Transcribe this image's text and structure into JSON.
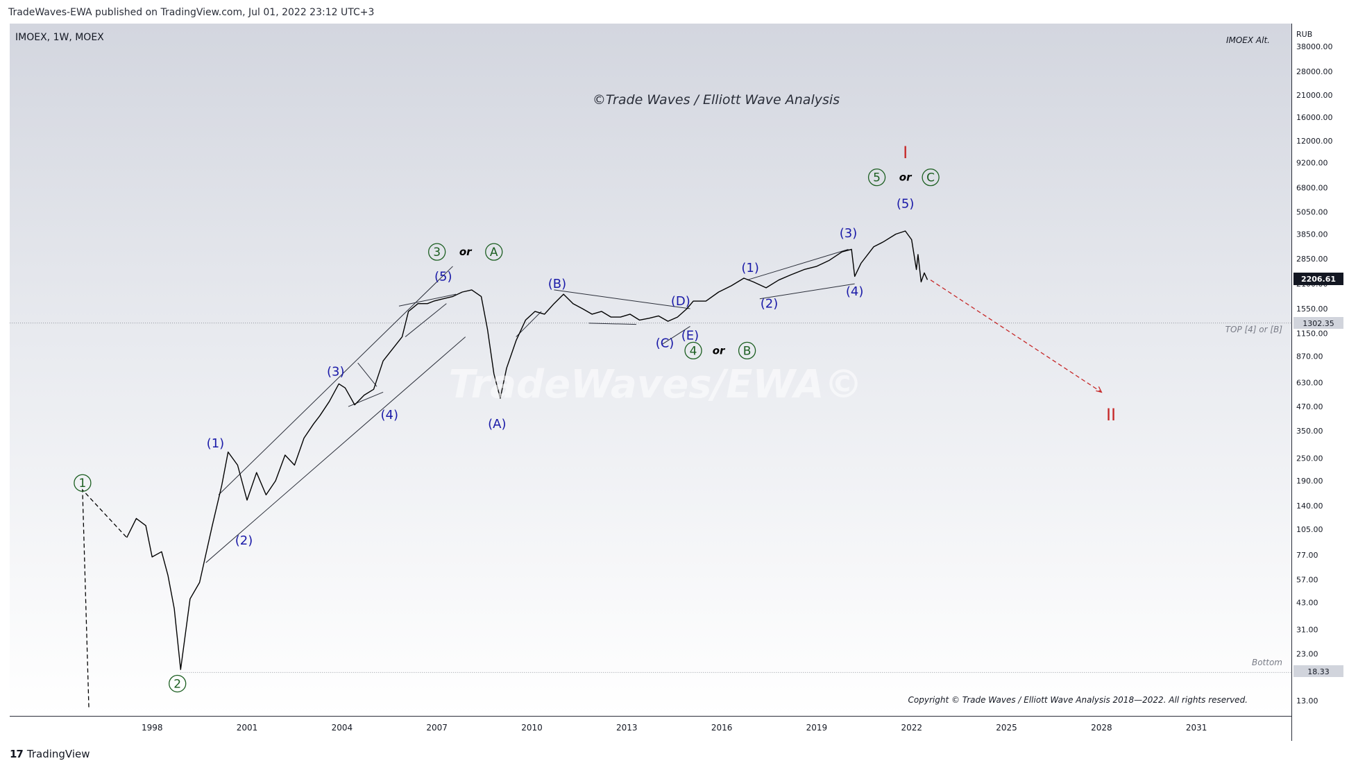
{
  "header": {
    "publisher_line": "TradeWaves-EWA published on TradingView.com, Jul 01, 2022 23:12 UTC+3"
  },
  "footer": {
    "brand": "TradingView"
  },
  "chart_data": {
    "type": "line",
    "symbol": "IMOEX, 1W, MOEX",
    "alt_label": "IMOEX Alt.",
    "currency": "RUB",
    "watermark": "©Trade Waves / Elliott Wave Analysis",
    "bg_watermark": "TradeWaves/EWA©",
    "copyright": "Copyright © Trade Waves / Elliott Wave Analysis 2018—2022. All rights reserved.",
    "scale": "log",
    "ylim": [
      12,
      40000
    ],
    "xlim": [
      1993.5,
      2034.0
    ],
    "y_ticks": [
      38000,
      28000,
      21000,
      16000,
      12000,
      9200,
      6800,
      5050,
      3850,
      2850,
      2100,
      1550,
      1150,
      870,
      630,
      470,
      350,
      250,
      190,
      140,
      105,
      77,
      57,
      43,
      31,
      23,
      13
    ],
    "y_tick_labels": [
      "38000.00",
      "28000.00",
      "21000.00",
      "16000.00",
      "12000.00",
      "9200.00",
      "6800.00",
      "5050.00",
      "3850.00",
      "2850.00",
      "2100.00",
      "1550.00",
      "1150.00",
      "870.00",
      "630.00",
      "470.00",
      "350.00",
      "250.00",
      "190.00",
      "140.00",
      "105.00",
      "77.00",
      "57.00",
      "43.00",
      "31.00",
      "23.00",
      "13.00"
    ],
    "x_ticks": [
      1998,
      2001,
      2004,
      2007,
      2010,
      2013,
      2016,
      2019,
      2022,
      2025,
      2028,
      2031
    ],
    "x_tick_labels": [
      "1998",
      "2001",
      "2004",
      "2007",
      "2010",
      "2013",
      "2016",
      "2019",
      "2022",
      "2025",
      "2028",
      "2031"
    ],
    "price_series": {
      "name": "IMOEX",
      "x": [
        1997.2,
        1997.5,
        1997.8,
        1998.0,
        1998.3,
        1998.5,
        1998.7,
        1998.9,
        1999.2,
        1999.5,
        1999.9,
        2000.2,
        2000.4,
        2000.7,
        2001.0,
        2001.3,
        2001.6,
        2001.9,
        2002.2,
        2002.5,
        2002.8,
        2003.1,
        2003.3,
        2003.6,
        2003.9,
        2004.1,
        2004.4,
        2004.7,
        2005.0,
        2005.3,
        2005.6,
        2005.9,
        2006.1,
        2006.4,
        2006.7,
        2006.9,
        2007.2,
        2007.5,
        2007.8,
        2008.1,
        2008.4,
        2008.6,
        2008.8,
        2009.0,
        2009.2,
        2009.5,
        2009.8,
        2010.1,
        2010.4,
        2010.7,
        2011.0,
        2011.3,
        2011.6,
        2011.9,
        2012.2,
        2012.5,
        2012.8,
        2013.1,
        2013.4,
        2013.7,
        2014.0,
        2014.3,
        2014.6,
        2014.9,
        2015.1,
        2015.5,
        2015.9,
        2016.3,
        2016.7,
        2017.0,
        2017.4,
        2017.8,
        2018.2,
        2018.6,
        2019.0,
        2019.4,
        2019.8,
        2020.1,
        2020.2,
        2020.4,
        2020.8,
        2021.1,
        2021.5,
        2021.8,
        2022.0,
        2022.15,
        2022.2,
        2022.3,
        2022.4,
        2022.5
      ],
      "y": [
        95,
        120,
        110,
        75,
        80,
        60,
        40,
        19,
        45,
        55,
        110,
        180,
        270,
        230,
        150,
        210,
        160,
        190,
        260,
        230,
        320,
        380,
        420,
        500,
        620,
        590,
        480,
        540,
        580,
        820,
        950,
        1100,
        1500,
        1650,
        1650,
        1700,
        1750,
        1800,
        1900,
        1950,
        1800,
        1200,
        700,
        520,
        750,
        1050,
        1350,
        1500,
        1450,
        1650,
        1850,
        1650,
        1550,
        1450,
        1500,
        1400,
        1400,
        1450,
        1350,
        1380,
        1420,
        1330,
        1400,
        1550,
        1700,
        1700,
        1900,
        2050,
        2250,
        2150,
        2000,
        2200,
        2350,
        2500,
        2600,
        2800,
        3100,
        3200,
        2300,
        2700,
        3300,
        3500,
        3850,
        4000,
        3600,
        2500,
        3000,
        2150,
        2400,
        2206
      ]
    },
    "last_price": "2206.61",
    "last_price_value": 2206.61,
    "reference_price": "1302.35",
    "reference_value": 1302.35,
    "reference_line_label": "TOP [4] or [B]",
    "bottom_price": "18.33",
    "bottom_value": 18.33,
    "bottom_line_label": "Bottom",
    "projection": {
      "from": [
        2022.6,
        2200
      ],
      "to": [
        2028.0,
        560
      ]
    },
    "wave_annotations": [
      {
        "text": "1",
        "x": 1995.8,
        "y": 185,
        "style": "circled",
        "color": "#1b5e20"
      },
      {
        "text": "2",
        "x": 1998.8,
        "y": 16,
        "style": "circled",
        "color": "#1b5e20"
      },
      {
        "text": "3",
        "x": 2007.0,
        "y": 3100,
        "style": "circled",
        "color": "#1b5e20"
      },
      {
        "text": "or",
        "x": 2007.9,
        "y": 3100,
        "style": "or",
        "color": "#000000"
      },
      {
        "text": "A",
        "x": 2008.8,
        "y": 3100,
        "style": "circled",
        "color": "#1b5e20"
      },
      {
        "text": "4",
        "x": 2015.1,
        "y": 930,
        "style": "circled",
        "color": "#1b5e20"
      },
      {
        "text": "or",
        "x": 2015.9,
        "y": 930,
        "style": "or",
        "color": "#000000"
      },
      {
        "text": "B",
        "x": 2016.8,
        "y": 930,
        "style": "circled",
        "color": "#1b5e20"
      },
      {
        "text": "5",
        "x": 2020.9,
        "y": 7700,
        "style": "circled",
        "color": "#1b5e20"
      },
      {
        "text": "or",
        "x": 2021.8,
        "y": 7700,
        "style": "or",
        "color": "#000000"
      },
      {
        "text": "C",
        "x": 2022.6,
        "y": 7700,
        "style": "circled",
        "color": "#1b5e20"
      },
      {
        "text": "I",
        "x": 2021.8,
        "y": 10400,
        "style": "roman",
        "color": "#c62828"
      },
      {
        "text": "II",
        "x": 2028.3,
        "y": 425,
        "style": "roman",
        "color": "#c62828"
      },
      {
        "text": "(1)",
        "x": 2000.0,
        "y": 300,
        "style": "paren",
        "color": "#1a1aa8"
      },
      {
        "text": "(2)",
        "x": 2000.9,
        "y": 92,
        "style": "paren",
        "color": "#1a1aa8"
      },
      {
        "text": "(3)",
        "x": 2003.8,
        "y": 720,
        "style": "paren",
        "color": "#1a1aa8"
      },
      {
        "text": "(4)",
        "x": 2005.5,
        "y": 425,
        "style": "paren",
        "color": "#1a1aa8"
      },
      {
        "text": "(5)",
        "x": 2007.2,
        "y": 2300,
        "style": "paren",
        "color": "#1a1aa8"
      },
      {
        "text": "(A)",
        "x": 2008.9,
        "y": 380,
        "style": "paren",
        "color": "#1a1aa8"
      },
      {
        "text": "(B)",
        "x": 2010.8,
        "y": 2100,
        "style": "paren",
        "color": "#1a1aa8"
      },
      {
        "text": "(C)",
        "x": 2014.2,
        "y": 1020,
        "style": "paren",
        "color": "#1a1aa8"
      },
      {
        "text": "(D)",
        "x": 2014.7,
        "y": 1700,
        "style": "paren",
        "color": "#1a1aa8"
      },
      {
        "text": "(E)",
        "x": 2015.0,
        "y": 1120,
        "style": "paren",
        "color": "#1a1aa8"
      },
      {
        "text": "(1)",
        "x": 2016.9,
        "y": 2560,
        "style": "paren",
        "color": "#1a1aa8"
      },
      {
        "text": "(2)",
        "x": 2017.5,
        "y": 1650,
        "style": "paren",
        "color": "#1a1aa8"
      },
      {
        "text": "(3)",
        "x": 2020.0,
        "y": 3900,
        "style": "paren",
        "color": "#1a1aa8"
      },
      {
        "text": "(4)",
        "x": 2020.2,
        "y": 1920,
        "style": "paren",
        "color": "#1a1aa8"
      },
      {
        "text": "(5)",
        "x": 2021.8,
        "y": 5600,
        "style": "paren",
        "color": "#1a1aa8"
      }
    ],
    "colors": {
      "price": "#000000",
      "blue": "#1a1aa8",
      "green": "#1b5e20",
      "red": "#c62828",
      "axis_text": "#131722",
      "gray": "#787b86"
    }
  }
}
